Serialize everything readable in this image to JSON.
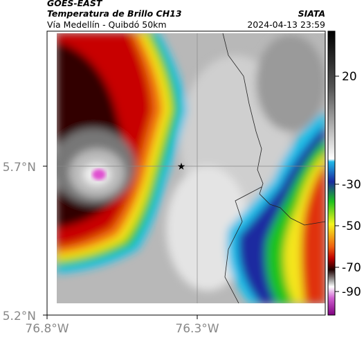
{
  "header": {
    "source": "GOES-EAST",
    "title": "Temperatura de Brillo CH13",
    "subtitle": "Vía Medellín - Quibdó 50km",
    "agency": "SIATA",
    "datetime": "2024-04-13 23:59"
  },
  "axes": {
    "lat_labels": [
      "5.7°N",
      "5.2°N"
    ],
    "lon_labels": [
      "76.8°W",
      "76.3°W"
    ]
  },
  "colorbar": {
    "ticks": [
      20,
      -30,
      -50,
      -70,
      -90
    ]
  }
}
